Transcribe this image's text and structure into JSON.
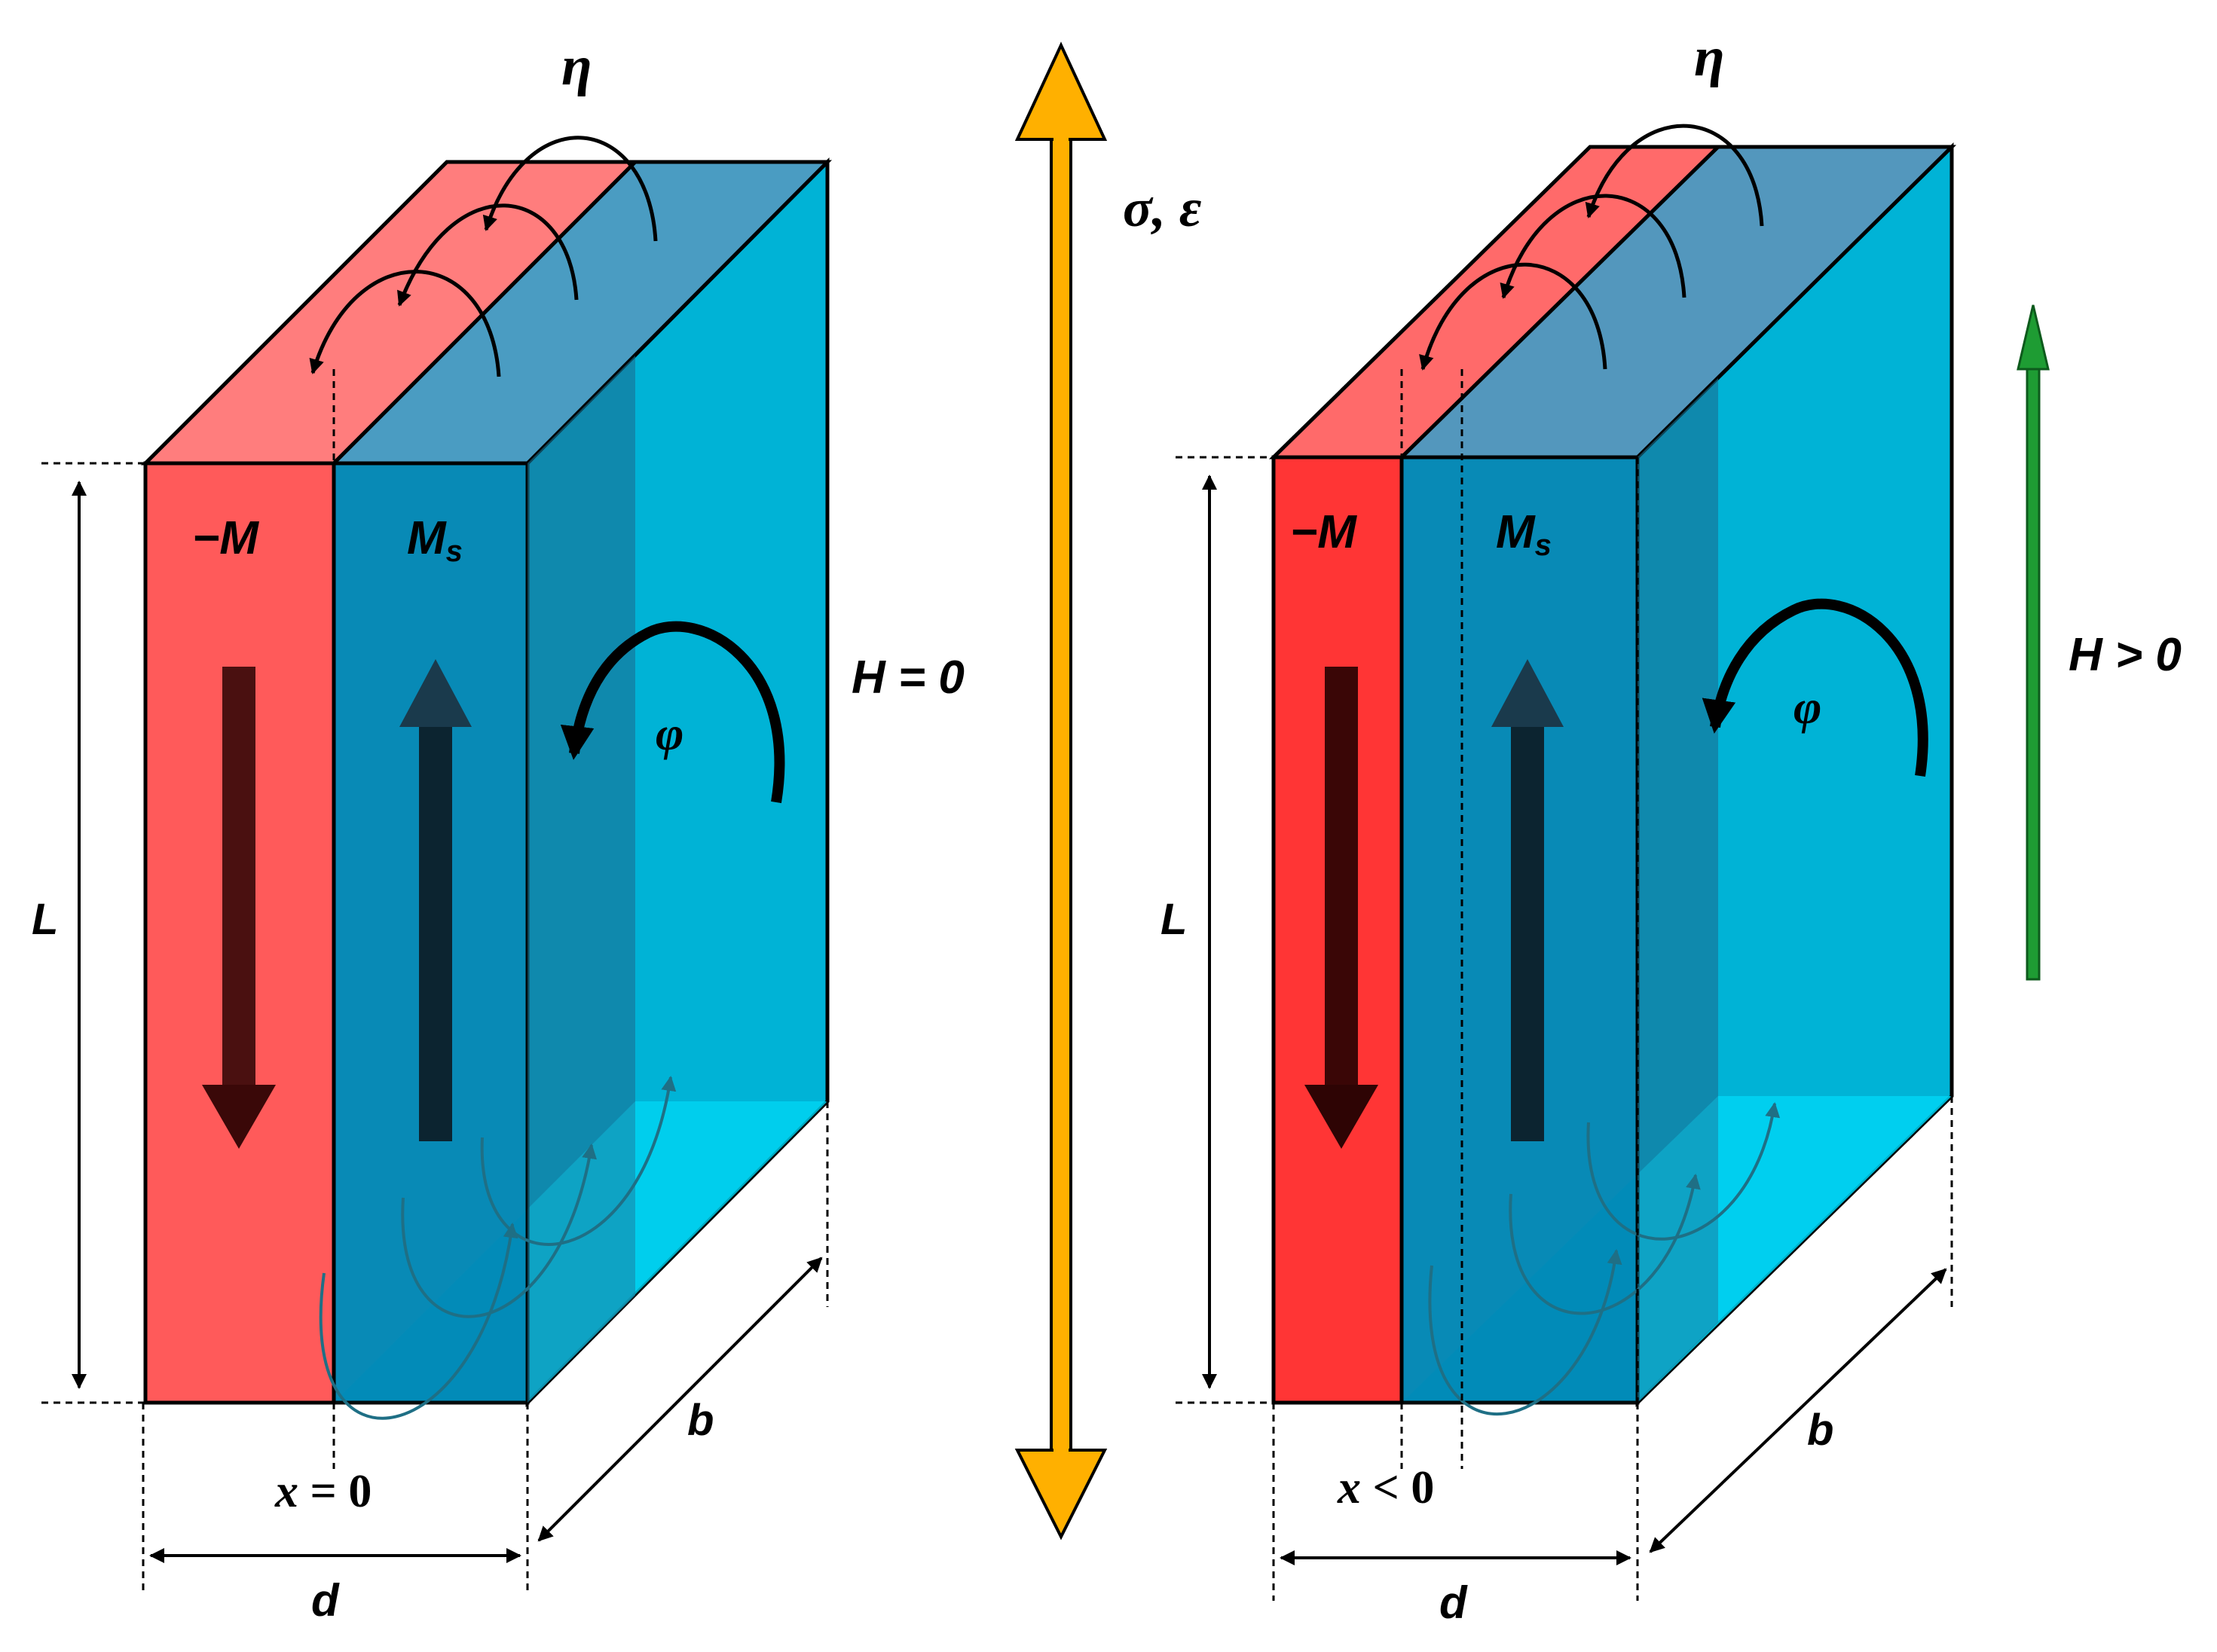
{
  "colors": {
    "domain_red": "#ff5a5a",
    "domain_red_right": "#ff3535",
    "domain_red_top": "#ff7d7d",
    "domain_blue_front": "#0087b5",
    "domain_blue_side": "#00b3d6",
    "domain_blue_top": "#00d4f3",
    "stress_arrow": "#ffb000",
    "field_arrow": "#1e9c33"
  },
  "icons": {
    "stress_arrow": "double-headed-arrow",
    "field_arrow": "up-arrow",
    "magnetization_arrows": "thick-arrow",
    "rotation": "curved-arrow"
  },
  "left_panel": {
    "eta": "η",
    "minus_m": "−M",
    "ms": "M",
    "ms_sub": "s",
    "phi": "φ",
    "l": "L",
    "b": "b",
    "d": "d",
    "x": "x",
    "x_rest": " = 0",
    "field": "H = 0"
  },
  "center": {
    "stress_label": "σ, ε"
  },
  "right_panel": {
    "eta": "η",
    "minus_m": "−M",
    "ms": "M",
    "ms_sub": "s",
    "phi": "φ",
    "l": "L",
    "b": "b",
    "d": "d",
    "x": "x",
    "x_rest": " < 0",
    "field": "H > 0"
  }
}
